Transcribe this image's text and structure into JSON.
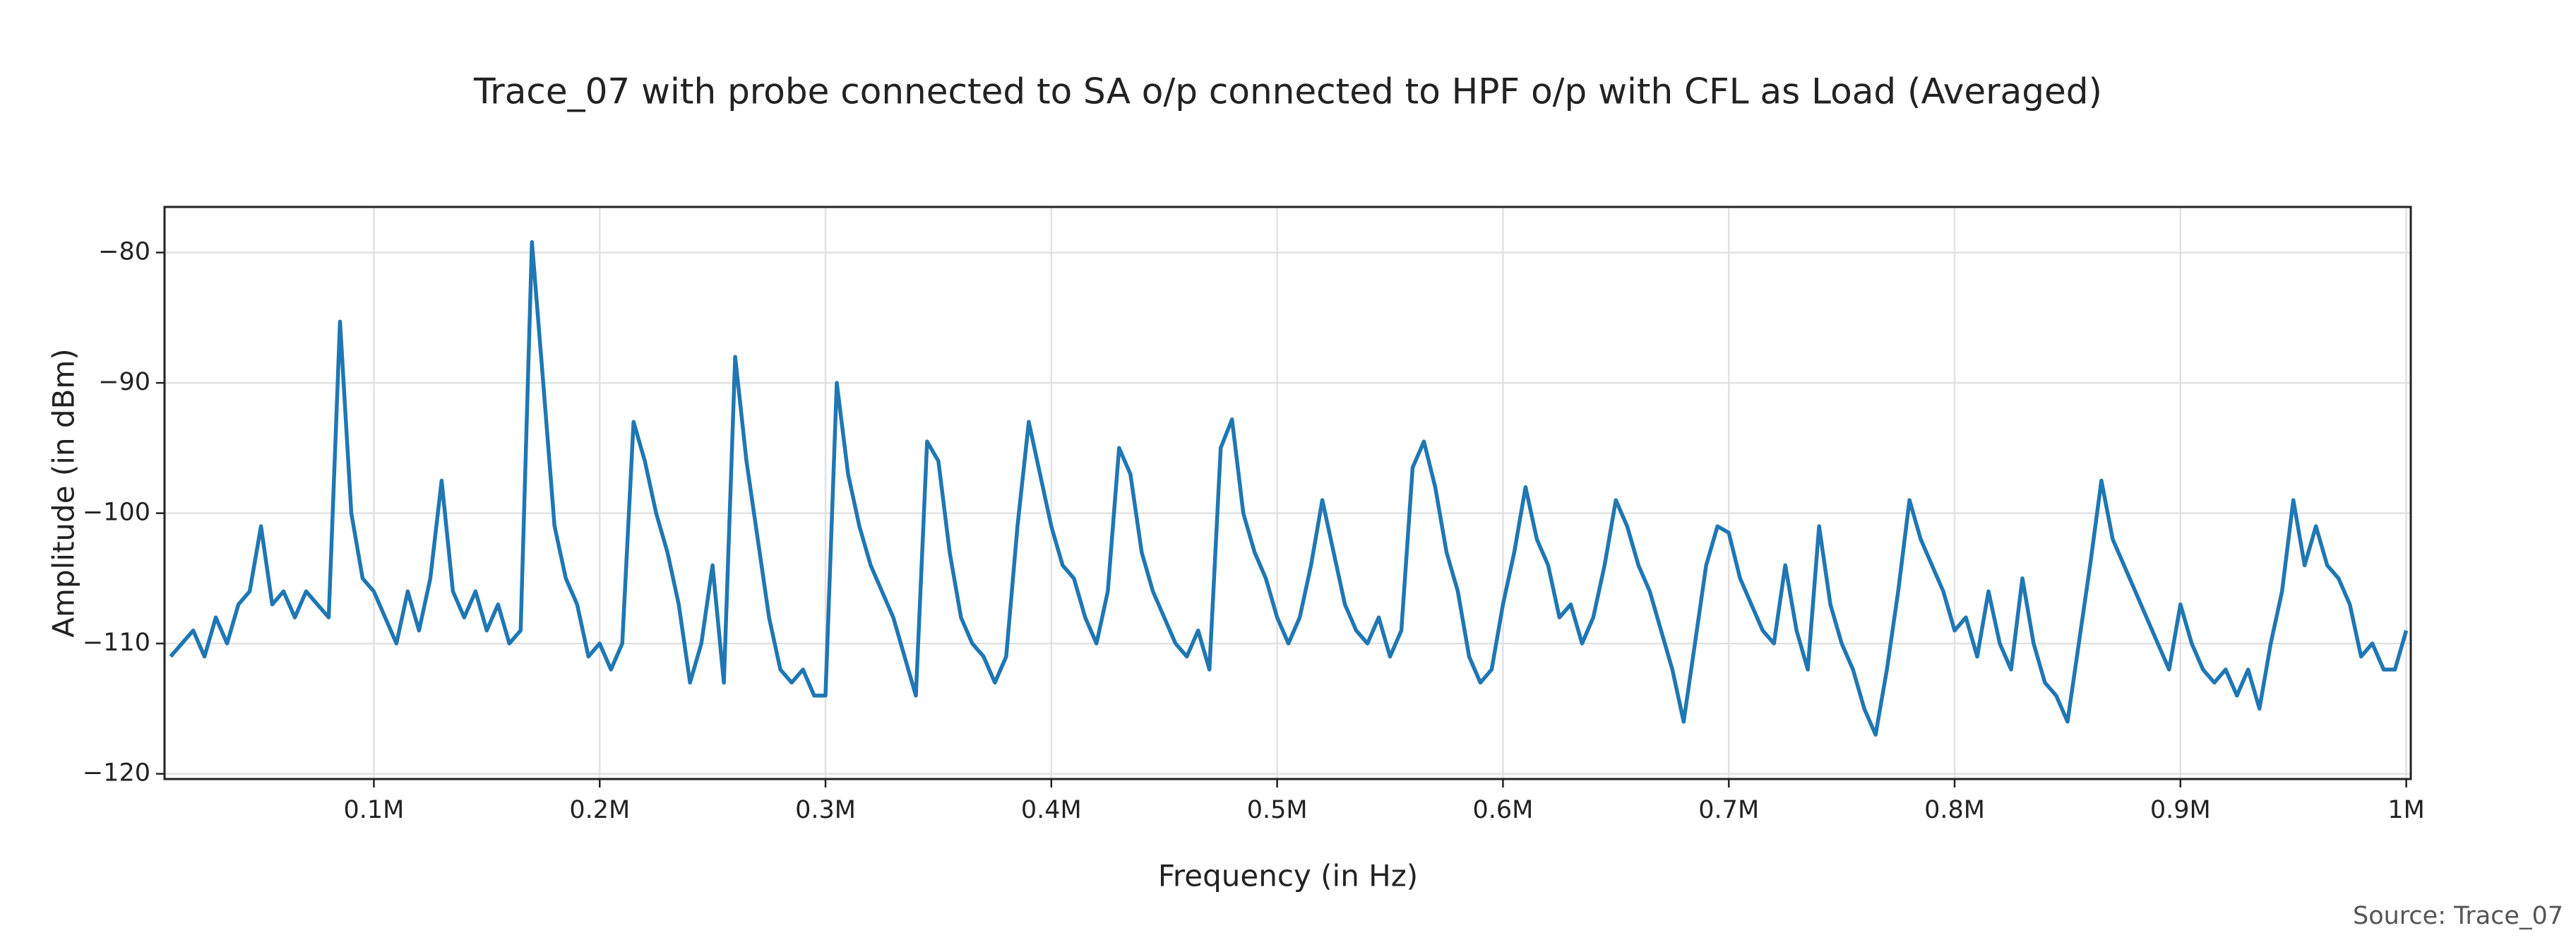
{
  "chart_data": {
    "type": "line",
    "title": "Trace_07 with probe connected to SA o/p connected to HPF o/p with CFL as Load (Averaged)",
    "x_label": "Frequency (in Hz)",
    "y_label": "Amplitude (in dBm)",
    "source": "Source: Trace_07",
    "xlim": [
      7300,
      1002000
    ],
    "ylim": [
      -120.4,
      -76.5
    ],
    "xticks": [
      {
        "value": 100000,
        "label": "0.1M"
      },
      {
        "value": 200000,
        "label": "0.2M"
      },
      {
        "value": 300000,
        "label": "0.3M"
      },
      {
        "value": 400000,
        "label": "0.4M"
      },
      {
        "value": 500000,
        "label": "0.5M"
      },
      {
        "value": 600000,
        "label": "0.6M"
      },
      {
        "value": 700000,
        "label": "0.7M"
      },
      {
        "value": 800000,
        "label": "0.8M"
      },
      {
        "value": 900000,
        "label": "0.9M"
      },
      {
        "value": 1000000,
        "label": "1M"
      }
    ],
    "yticks": [
      {
        "value": -80,
        "label": "−80"
      },
      {
        "value": -90,
        "label": "−90"
      },
      {
        "value": -100,
        "label": "−100"
      },
      {
        "value": -110,
        "label": "−110"
      },
      {
        "value": -120,
        "label": "−120"
      }
    ],
    "grid": true,
    "x": [
      10000,
      15000,
      20000,
      25000,
      30000,
      35000,
      40000,
      45000,
      50000,
      55000,
      60000,
      65000,
      70000,
      75000,
      80000,
      85000,
      90000,
      95000,
      100000,
      105000,
      110000,
      115000,
      120000,
      125000,
      130000,
      135000,
      140000,
      145000,
      150000,
      155000,
      160000,
      165000,
      170000,
      175000,
      180000,
      185000,
      190000,
      195000,
      200000,
      205000,
      210000,
      215000,
      220000,
      225000,
      230000,
      235000,
      240000,
      245000,
      250000,
      255000,
      260000,
      265000,
      270000,
      275000,
      280000,
      285000,
      290000,
      295000,
      300000,
      305000,
      310000,
      315000,
      320000,
      325000,
      330000,
      335000,
      340000,
      345000,
      350000,
      355000,
      360000,
      365000,
      370000,
      375000,
      380000,
      385000,
      390000,
      395000,
      400000,
      405000,
      410000,
      415000,
      420000,
      425000,
      430000,
      435000,
      440000,
      445000,
      450000,
      455000,
      460000,
      465000,
      470000,
      475000,
      480000,
      485000,
      490000,
      495000,
      500000,
      505000,
      510000,
      515000,
      520000,
      525000,
      530000,
      535000,
      540000,
      545000,
      550000,
      555000,
      560000,
      565000,
      570000,
      575000,
      580000,
      585000,
      590000,
      595000,
      600000,
      605000,
      610000,
      615000,
      620000,
      625000,
      630000,
      635000,
      640000,
      645000,
      650000,
      655000,
      660000,
      665000,
      670000,
      675000,
      680000,
      685000,
      690000,
      695000,
      700000,
      705000,
      710000,
      715000,
      720000,
      725000,
      730000,
      735000,
      740000,
      745000,
      750000,
      755000,
      760000,
      765000,
      770000,
      775000,
      780000,
      785000,
      790000,
      795000,
      800000,
      805000,
      810000,
      815000,
      820000,
      825000,
      830000,
      835000,
      840000,
      845000,
      850000,
      855000,
      860000,
      865000,
      870000,
      875000,
      880000,
      885000,
      890000,
      895000,
      900000,
      905000,
      910000,
      915000,
      920000,
      925000,
      930000,
      935000,
      940000,
      945000,
      950000,
      955000,
      960000,
      965000,
      970000,
      975000,
      980000,
      985000,
      990000,
      995000,
      1000000
    ],
    "series": [
      {
        "color": "#1f77b4",
        "values": [
          -111,
          -110,
          -109,
          -111,
          -108,
          -110,
          -107,
          -106,
          -101,
          -107,
          -106,
          -108,
          -106,
          -107,
          -108,
          -85.3,
          -100,
          -105,
          -106,
          -108,
          -110,
          -106,
          -109,
          -105,
          -97.5,
          -106,
          -108,
          -106,
          -109,
          -107,
          -110,
          -109,
          -79.2,
          -90,
          -101,
          -105,
          -107,
          -111,
          -110,
          -112,
          -110,
          -93,
          -96,
          -100,
          -103,
          -107,
          -113,
          -110,
          -104,
          -113,
          -88,
          -96,
          -102,
          -108,
          -112,
          -113,
          -112,
          -114,
          -114,
          -90,
          -97,
          -101,
          -104,
          -106,
          -108,
          -111,
          -114,
          -94.5,
          -96,
          -103,
          -108,
          -110,
          -111,
          -113,
          -111,
          -101,
          -93,
          -97,
          -101,
          -104,
          -105,
          -108,
          -110,
          -106,
          -95,
          -97,
          -103,
          -106,
          -108,
          -110,
          -111,
          -109,
          -112,
          -95,
          -92.8,
          -100,
          -103,
          -105,
          -108,
          -110,
          -108,
          -104,
          -99,
          -103,
          -107,
          -109,
          -110,
          -108,
          -111,
          -109,
          -96.5,
          -94.5,
          -98,
          -103,
          -106,
          -111,
          -113,
          -112,
          -107,
          -103,
          -98,
          -102,
          -104,
          -108,
          -107,
          -110,
          -108,
          -104,
          -99,
          -101,
          -104,
          -106,
          -109,
          -112,
          -116,
          -110,
          -104,
          -101,
          -101.5,
          -105,
          -107,
          -109,
          -110,
          -104,
          -109,
          -112,
          -101,
          -107,
          -110,
          -112,
          -115,
          -117,
          -112,
          -106,
          -99,
          -102,
          -104,
          -106,
          -109,
          -108,
          -111,
          -106,
          -110,
          -112,
          -105,
          -110,
          -113,
          -114,
          -116,
          -110,
          -104,
          -97.5,
          -102,
          -104,
          -106,
          -108,
          -110,
          -112,
          -107,
          -110,
          -112,
          -113,
          -112,
          -114,
          -112,
          -115,
          -110,
          -106,
          -99,
          -104,
          -101,
          -104,
          -105,
          -107,
          -111,
          -110,
          -112,
          -112,
          -109
        ]
      }
    ]
  }
}
